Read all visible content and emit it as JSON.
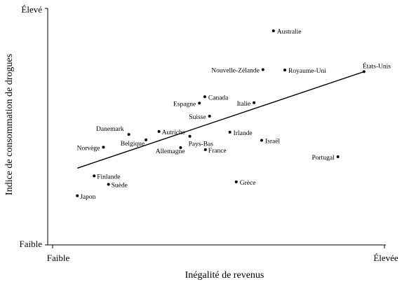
{
  "chart_data": {
    "type": "scatter",
    "title": "",
    "xlabel": "Inégalité de revenus",
    "ylabel": "Indice de consommation de drogues",
    "xlim": [
      0,
      10
    ],
    "ylim": [
      0,
      10
    ],
    "x_tick_labels": [
      "Faible",
      "Élevée"
    ],
    "y_tick_labels": [
      "Faible",
      "Élevé"
    ],
    "grid": false,
    "points": [
      {
        "label": "Australie",
        "x": 6.97,
        "y": 9.2
      },
      {
        "label": "Nouvelle-Zélande",
        "x": 6.64,
        "y": 7.5
      },
      {
        "label": "Royaume-Uni",
        "x": 7.33,
        "y": 7.48
      },
      {
        "label": "États-Unis",
        "x": 9.82,
        "y": 7.41
      },
      {
        "label": "Canada",
        "x": 4.81,
        "y": 6.31
      },
      {
        "label": "Espagne",
        "x": 4.64,
        "y": 6.03
      },
      {
        "label": "Italie",
        "x": 6.36,
        "y": 6.05
      },
      {
        "label": "Suisse",
        "x": 4.96,
        "y": 5.46
      },
      {
        "label": "Danemark",
        "x": 2.42,
        "y": 4.66
      },
      {
        "label": "Autriche",
        "x": 3.37,
        "y": 4.79
      },
      {
        "label": "Belgique",
        "x": 2.96,
        "y": 4.42
      },
      {
        "label": "Pays-Bas",
        "x": 4.34,
        "y": 4.58
      },
      {
        "label": "Irlande",
        "x": 5.6,
        "y": 4.76
      },
      {
        "label": "Israël",
        "x": 6.6,
        "y": 4.4
      },
      {
        "label": "Norvège",
        "x": 1.62,
        "y": 4.1
      },
      {
        "label": "Allemagne",
        "x": 4.05,
        "y": 4.08
      },
      {
        "label": "France",
        "x": 4.83,
        "y": 3.99
      },
      {
        "label": "Portugal",
        "x": 9.0,
        "y": 3.68
      },
      {
        "label": "Finlande",
        "x": 1.33,
        "y": 2.84
      },
      {
        "label": "Suède",
        "x": 1.78,
        "y": 2.47
      },
      {
        "label": "Grèce",
        "x": 5.8,
        "y": 2.58
      },
      {
        "label": "Japon",
        "x": 0.8,
        "y": 1.97
      }
    ],
    "trendline": {
      "x": [
        0.8,
        9.82
      ],
      "y": [
        3.18,
        7.41
      ]
    }
  }
}
